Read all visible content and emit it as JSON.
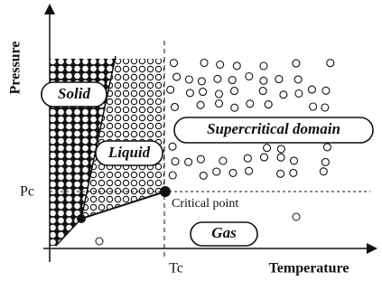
{
  "axes": {
    "y_label": "Pressure",
    "x_label": "Temperature",
    "pc": "Pc",
    "tc": "Tc"
  },
  "regions": {
    "solid": "Solid",
    "liquid": "Liquid",
    "supercritical": "Supercritical domain",
    "gas": "Gas"
  },
  "critical_point": "Critical point"
}
